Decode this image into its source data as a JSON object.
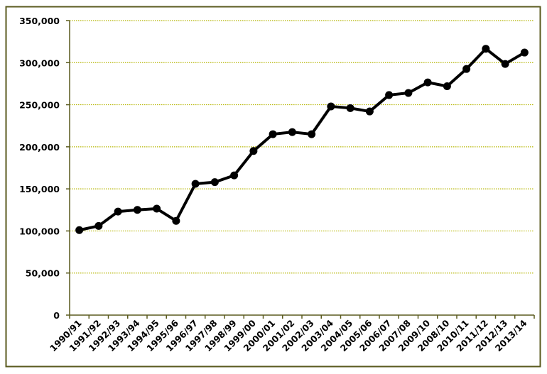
{
  "chart_data": {
    "type": "line",
    "title": "",
    "xlabel": "",
    "ylabel": "",
    "categories": [
      "1990/91",
      "1991/92",
      "1992/93",
      "1993/94",
      "1994/95",
      "1995/96",
      "1996/97",
      "1997/98",
      "1998/99",
      "1999/00",
      "2000/01",
      "2001/02",
      "2002/03",
      "2003/04",
      "2004/05",
      "2005/06",
      "2006/07",
      "2007/08",
      "2009/10",
      "2008/10",
      "2010/11",
      "2011/12",
      "2012/13",
      "2013/14"
    ],
    "series": [
      {
        "values": [
          101000,
          106000,
          123000,
          125000,
          126500,
          112000,
          156000,
          158000,
          166000,
          195000,
          215000,
          217500,
          215000,
          248000,
          246000,
          242000,
          261500,
          264000,
          276500,
          272000,
          292500,
          316500,
          298500,
          312000
        ]
      }
    ],
    "ylim": [
      0,
      350000
    ],
    "yticks": [
      0,
      50000,
      100000,
      150000,
      200000,
      250000,
      300000,
      350000
    ],
    "ytick_labels": [
      "0",
      "50,000",
      "100,000",
      "150,000",
      "200,000",
      "250,000",
      "300,000",
      "350,000"
    ],
    "grid": "horizontal dotted",
    "legend": "none",
    "colors": {
      "line": "#000000",
      "grid": "#b5b500",
      "frame": "#5a5a1e",
      "axis": "#5a5a1e"
    }
  }
}
